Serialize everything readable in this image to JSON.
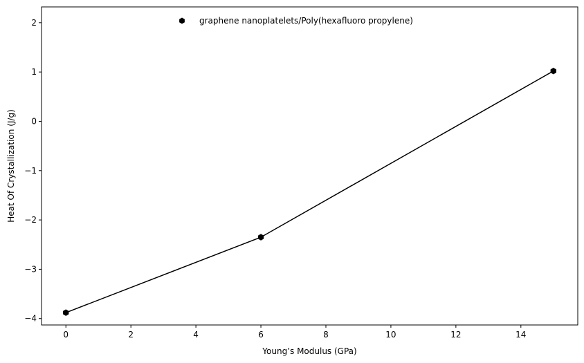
{
  "chart_data": {
    "type": "line",
    "title": "",
    "xlabel": "Young’s Modulus (GPa)",
    "ylabel": "Heat Of Crystallization (J/g)",
    "xlim": [
      -0.75,
      15.75
    ],
    "ylim": [
      -4.13,
      2.32
    ],
    "xticks": [
      0,
      2,
      4,
      6,
      8,
      10,
      12,
      14
    ],
    "xtick_labels": [
      "0",
      "2",
      "4",
      "6",
      "8",
      "10",
      "12",
      "14"
    ],
    "yticks": [
      -4,
      -3,
      -2,
      -1,
      0,
      1,
      2
    ],
    "ytick_labels": [
      "−4",
      "−3",
      "−2",
      "−1",
      "0",
      "1",
      "2"
    ],
    "grid": false,
    "legend_position": "top-center",
    "series": [
      {
        "name": "graphene nanoplatelets/Poly(hexafluoro propylene)",
        "color": "#000000",
        "marker": "hexagon",
        "x": [
          0,
          6,
          15
        ],
        "y": [
          -3.88,
          -2.35,
          1.02
        ]
      }
    ]
  }
}
